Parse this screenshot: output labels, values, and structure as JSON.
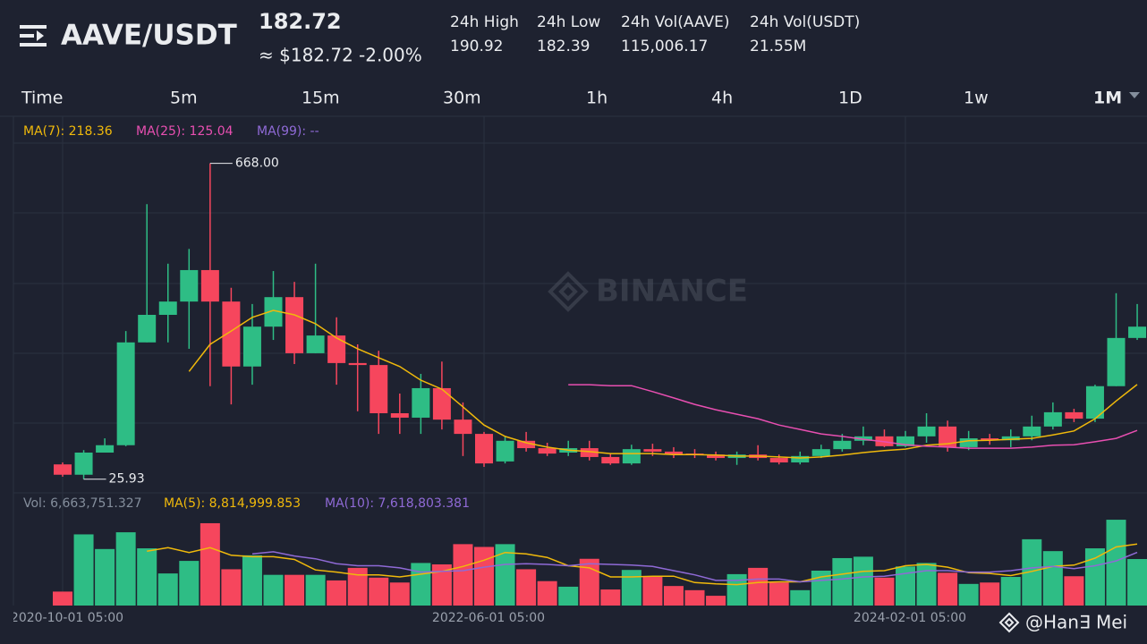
{
  "header": {
    "pair": "AAVE/USDT",
    "price": "182.72",
    "fiat_price": "≈ $182.72",
    "change": "-2.00%",
    "stats": [
      {
        "label": "24h High",
        "value": "190.92"
      },
      {
        "label": "24h Low",
        "value": "182.39"
      },
      {
        "label": "24h Vol(AAVE)",
        "value": "115,006.17"
      },
      {
        "label": "24h Vol(USDT)",
        "value": "21.55M"
      }
    ]
  },
  "timeframes": [
    "Time",
    "5m",
    "15m",
    "30m",
    "1h",
    "4h",
    "1D",
    "1w",
    "1M"
  ],
  "selected_timeframe": 8,
  "watermark": "BINANCE",
  "credit": "@Han∃ Mei",
  "chart_data": {
    "type": "candlestick",
    "categories": [
      "2020-10-01 05:00",
      null,
      null,
      null,
      null,
      null,
      null,
      null,
      null,
      null,
      null,
      null,
      null,
      null,
      null,
      null,
      null,
      null,
      null,
      null,
      "2022-06-01 05:00",
      null,
      null,
      null,
      null,
      null,
      null,
      null,
      null,
      null,
      null,
      null,
      null,
      null,
      null,
      null,
      null,
      null,
      null,
      null,
      "2024-02-01 05:00",
      null,
      null,
      null,
      null,
      null,
      null,
      null,
      null,
      null,
      null,
      null
    ],
    "open": [
      56,
      35,
      80,
      95,
      304,
      360,
      387,
      451,
      387,
      255,
      336,
      396,
      282,
      318,
      262,
      258,
      160,
      151,
      211,
      147,
      118,
      62,
      104,
      89,
      80,
      89,
      71,
      58,
      87,
      82,
      78,
      76,
      69,
      76,
      69,
      60,
      73,
      87,
      104,
      113,
      93,
      113,
      133,
      91,
      109,
      105,
      113,
      133,
      162,
      149,
      215,
      313
    ],
    "high": [
      60,
      85,
      109,
      327,
      585,
      464,
      494,
      668,
      415,
      382,
      449,
      427,
      464,
      355,
      300,
      287,
      200,
      240,
      265,
      182,
      122,
      113,
      122,
      100,
      104,
      104,
      78,
      96,
      98,
      91,
      87,
      82,
      82,
      95,
      76,
      82,
      96,
      118,
      133,
      127,
      124,
      160,
      145,
      124,
      118,
      127,
      155,
      182,
      169,
      218,
      404,
      382
    ],
    "low": [
      31,
      25.93,
      80,
      93,
      304,
      304,
      291,
      215,
      178,
      218,
      309,
      260,
      282,
      218,
      164,
      118,
      118,
      118,
      127,
      73,
      51,
      58,
      82,
      73,
      73,
      64,
      55,
      55,
      73,
      69,
      69,
      64,
      55,
      64,
      56,
      56,
      69,
      82,
      95,
      91,
      91,
      100,
      82,
      85,
      96,
      91,
      105,
      127,
      142,
      142,
      215,
      309
    ],
    "close": [
      35,
      80,
      95,
      304,
      360,
      387,
      451,
      387,
      255,
      336,
      396,
      282,
      318,
      262,
      258,
      160,
      151,
      211,
      147,
      118,
      58,
      104,
      89,
      78,
      89,
      71,
      58,
      87,
      82,
      76,
      76,
      69,
      76,
      69,
      60,
      73,
      87,
      104,
      113,
      93,
      113,
      133,
      91,
      109,
      105,
      113,
      133,
      162,
      149,
      215,
      313,
      336
    ],
    "high_labels": [
      null,
      null,
      null,
      null,
      null,
      null,
      null,
      "668.00",
      null,
      null,
      null,
      null,
      null,
      null,
      null,
      null,
      null,
      null,
      null,
      null,
      null,
      null,
      null,
      null,
      null,
      null,
      null,
      null,
      null,
      null,
      null,
      null,
      null,
      null,
      null,
      null,
      null,
      null,
      null,
      null,
      null,
      null,
      null,
      null,
      null,
      null,
      null,
      null,
      null,
      null,
      null,
      null
    ],
    "low_labels": [
      null,
      "25.93",
      null,
      null,
      null,
      null,
      null,
      null,
      null,
      null,
      null,
      null,
      null,
      null,
      null,
      null,
      null,
      null,
      null,
      null,
      null,
      null,
      null,
      null,
      null,
      null,
      null,
      null,
      null,
      null,
      null,
      null,
      null,
      null,
      null,
      null,
      null,
      null,
      null,
      null,
      null,
      null,
      null,
      null,
      null,
      null,
      null,
      null,
      null,
      null,
      null,
      null
    ],
    "up_color": "#2ebd85",
    "down_color": "#f6465d",
    "ylim": [
      0,
      760
    ],
    "ma_lines": [
      {
        "legend": "MA(7): 218.36",
        "color": "#f0b90b",
        "values": [
          null,
          null,
          null,
          null,
          null,
          null,
          245,
          300,
          327,
          355,
          369,
          360,
          342,
          313,
          291,
          273,
          255,
          227,
          209,
          173,
          136,
          113,
          100,
          91,
          85,
          82,
          78,
          78,
          78,
          76,
          76,
          75,
          73,
          73,
          71,
          69,
          71,
          75,
          80,
          84,
          87,
          95,
          98,
          104,
          105,
          107,
          109,
          116,
          124,
          149,
          185,
          218.36
        ]
      },
      {
        "legend": "MA(25): 125.04",
        "color": "#e84fb1",
        "values": [
          null,
          null,
          null,
          null,
          null,
          null,
          null,
          null,
          null,
          null,
          null,
          null,
          null,
          null,
          null,
          null,
          null,
          null,
          null,
          null,
          null,
          null,
          null,
          null,
          218,
          218,
          216,
          216,
          204,
          191,
          178,
          167,
          158,
          149,
          136,
          127,
          118,
          113,
          107,
          102,
          96,
          93,
          91,
          89,
          89,
          89,
          91,
          95,
          96,
          102,
          109,
          125.04
        ]
      },
      {
        "legend": "MA(99): --",
        "color": "#8f6ad6"
      }
    ],
    "volume": {
      "legend": "Vol: 6,663,751.327",
      "color": "#848e9c",
      "ylim": [
        0,
        15000000
      ],
      "values": [
        2000000,
        10200000,
        8100000,
        10500000,
        8200000,
        4600000,
        6400000,
        11800000,
        5200000,
        7200000,
        4400000,
        4400000,
        4400000,
        3600000,
        5400000,
        4000000,
        3300000,
        6100000,
        5900000,
        8800000,
        8400000,
        8800000,
        5200000,
        3500000,
        2700000,
        6700000,
        2300000,
        5100000,
        4100000,
        2800000,
        2200000,
        1400000,
        4500000,
        5400000,
        3300000,
        2200000,
        5000000,
        6800000,
        7000000,
        4000000,
        5600000,
        6100000,
        4700000,
        3100000,
        3300000,
        4100000,
        9500000,
        7800000,
        4200000,
        8200000,
        12300000,
        6663751.327
      ],
      "ma_lines": [
        {
          "legend": "MA(5): 8,814,999.853",
          "color": "#f0b90b",
          "values": [
            null,
            null,
            null,
            null,
            7800000,
            8300000,
            7600000,
            8300000,
            7200000,
            7000000,
            7000000,
            6600000,
            5100000,
            4800000,
            4400000,
            4400000,
            4100000,
            4500000,
            4900000,
            5600000,
            6500000,
            7600000,
            7400000,
            6900000,
            5700000,
            5400000,
            4100000,
            4100000,
            4200000,
            4200000,
            3300000,
            3100000,
            3000000,
            3300000,
            3400000,
            3400000,
            4100000,
            4500000,
            4900000,
            5000000,
            5700000,
            5900000,
            5500000,
            4700000,
            4600000,
            4300000,
            4900000,
            5600000,
            5800000,
            6800000,
            8400000,
            8814999.853
          ]
        },
        {
          "legend": "MA(10): 7,618,803.381",
          "color": "#8f6ad6",
          "values": [
            null,
            null,
            null,
            null,
            null,
            null,
            null,
            null,
            null,
            7400000,
            7700000,
            7100000,
            6700000,
            6000000,
            5700000,
            5700000,
            5400000,
            4800000,
            4900000,
            5000000,
            5500000,
            5900000,
            6000000,
            5900000,
            5700000,
            6000000,
            5900000,
            5800000,
            5600000,
            5000000,
            4400000,
            3600000,
            3600000,
            3800000,
            3800000,
            3400000,
            3600000,
            3800000,
            4100000,
            4200000,
            4600000,
            5000000,
            5000000,
            4800000,
            4800000,
            5000000,
            5400000,
            5600000,
            5300000,
            5700000,
            6400000,
            7618803.381
          ]
        }
      ]
    }
  }
}
